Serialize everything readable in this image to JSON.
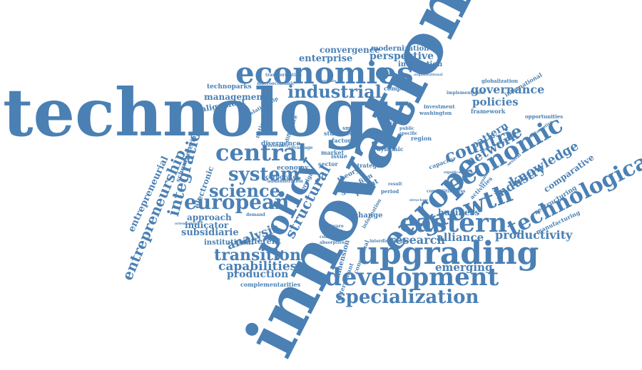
{
  "word_color": "#4a80b4",
  "words": [
    {
      "text": "technology",
      "weight": 1.0
    },
    {
      "text": "innovation",
      "weight": 1.0
    },
    {
      "text": "upgrading",
      "weight": 0.55
    },
    {
      "text": "economies",
      "weight": 0.45
    },
    {
      "text": "policy",
      "weight": 0.45
    },
    {
      "text": "europe",
      "weight": 0.45
    },
    {
      "text": "eastern",
      "weight": 0.4
    },
    {
      "text": "growth",
      "weight": 0.4
    },
    {
      "text": "economic",
      "weight": 0.4
    },
    {
      "text": "development",
      "weight": 0.4
    },
    {
      "text": "technological",
      "weight": 0.35
    },
    {
      "text": "central",
      "weight": 0.35
    },
    {
      "text": "industrial",
      "weight": 0.3
    },
    {
      "text": "european",
      "weight": 0.3
    },
    {
      "text": "system",
      "weight": 0.3
    },
    {
      "text": "science",
      "weight": 0.3
    },
    {
      "text": "specialization",
      "weight": 0.3
    },
    {
      "text": "countrie",
      "weight": 0.3
    },
    {
      "text": "integration",
      "weight": 0.25
    },
    {
      "text": "entrepreneurship",
      "weight": 0.25
    },
    {
      "text": "structural",
      "weight": 0.25
    },
    {
      "text": "knowledge",
      "weight": 0.25
    },
    {
      "text": "network",
      "weight": 0.25
    },
    {
      "text": "industry",
      "weight": 0.22
    },
    {
      "text": "transition",
      "weight": 0.22
    },
    {
      "text": "capabilities",
      "weight": 0.2
    },
    {
      "text": "production",
      "weight": 0.18
    },
    {
      "text": "research",
      "weight": 0.18
    },
    {
      "text": "alliance",
      "weight": 0.18
    },
    {
      "text": "productivity",
      "weight": 0.18
    },
    {
      "text": "governance",
      "weight": 0.18
    },
    {
      "text": "policies",
      "weight": 0.18
    },
    {
      "text": "perspective",
      "weight": 0.16
    },
    {
      "text": "enterprise",
      "weight": 0.16
    },
    {
      "text": "convergence",
      "weight": 0.14
    },
    {
      "text": "modernization",
      "weight": 0.14
    },
    {
      "text": "analysis",
      "weight": 0.18
    },
    {
      "text": "indicator",
      "weight": 0.16
    },
    {
      "text": "subsidiarie",
      "weight": 0.16
    },
    {
      "text": "approach",
      "weight": 0.14
    },
    {
      "text": "different",
      "weight": 0.14
    },
    {
      "text": "emerging",
      "weight": 0.16
    },
    {
      "text": "business",
      "weight": 0.14
    },
    {
      "text": "pattern",
      "weight": 0.18
    },
    {
      "text": "comparative",
      "weight": 0.14
    },
    {
      "text": "entrepreneurial",
      "weight": 0.14
    },
    {
      "text": "alignment",
      "weight": 0.12
    },
    {
      "text": "electronic",
      "weight": 0.12
    },
    {
      "text": "management",
      "weight": 0.11
    },
    {
      "text": "restructuring",
      "weight": 0.11
    },
    {
      "text": "manufacturing",
      "weight": 0.1
    },
    {
      "text": "interaction",
      "weight": 0.1
    },
    {
      "text": "global",
      "weight": 0.12
    },
    {
      "text": "change",
      "weight": 0.11
    },
    {
      "text": "dimension",
      "weight": 0.11
    },
    {
      "text": "determinant",
      "weight": 0.1
    },
    {
      "text": "conceptual",
      "weight": 0.1
    },
    {
      "text": "patent",
      "weight": 0.11
    },
    {
      "text": "theory",
      "weight": 0.11
    },
    {
      "text": "firm",
      "weight": 0.1
    },
    {
      "text": "complementarities",
      "weight": 0.09
    },
    {
      "text": "institutional",
      "weight": 0.1
    },
    {
      "text": "schumpeterian",
      "weight": 0.09
    },
    {
      "text": "technoparks",
      "weight": 0.09
    },
    {
      "text": "divergence",
      "weight": 0.09
    },
    {
      "text": "economy",
      "weight": 0.09
    },
    {
      "text": "corporate",
      "weight": 0.09
    },
    {
      "text": "market",
      "weight": 0.09
    },
    {
      "text": "foreign",
      "weight": 0.09
    },
    {
      "text": "income",
      "weight": 0.09
    },
    {
      "text": "studies",
      "weight": 0.09
    },
    {
      "text": "capacity",
      "weight": 0.09
    },
    {
      "text": "activities",
      "weight": 0.09
    },
    {
      "text": "opportunities",
      "weight": 0.08
    },
    {
      "text": "washington",
      "weight": 0.08
    },
    {
      "text": "framework",
      "weight": 0.08
    },
    {
      "text": "investment",
      "weight": 0.08
    },
    {
      "text": "globalization",
      "weight": 0.08
    },
    {
      "text": "international",
      "weight": 0.08
    },
    {
      "text": "implementation",
      "weight": 0.07
    },
    {
      "text": "composite",
      "weight": 0.08
    },
    {
      "text": "transformation",
      "weight": 0.07
    },
    {
      "text": "macroeconomic",
      "weight": 0.07
    },
    {
      "text": "relationship",
      "weight": 0.07
    },
    {
      "text": "national",
      "weight": 0.08
    },
    {
      "text": "difference",
      "weight": 0.07
    },
    {
      "text": "intensity",
      "weight": 0.07
    },
    {
      "text": "advantage",
      "weight": 0.07
    },
    {
      "text": "demand",
      "weight": 0.07
    },
    {
      "text": "orientation",
      "weight": 0.07
    },
    {
      "text": "interdisciplinary",
      "weight": 0.06
    },
    {
      "text": "software",
      "weight": 0.07
    },
    {
      "text": "scientific",
      "weight": 0.07
    },
    {
      "text": "computer",
      "weight": 0.07
    },
    {
      "text": "absorptive",
      "weight": 0.07
    },
    {
      "text": "information",
      "weight": 0.07
    },
    {
      "text": "dynamic",
      "weight": 0.07
    },
    {
      "text": "factor",
      "weight": 0.08
    },
    {
      "text": "region",
      "weight": 0.08
    },
    {
      "text": "strategic",
      "weight": 0.08
    },
    {
      "text": "issue",
      "weight": 0.08
    },
    {
      "text": "sector",
      "weight": 0.08
    },
    {
      "text": "smart",
      "weight": 0.08
    },
    {
      "text": "period",
      "weight": 0.07
    },
    {
      "text": "result",
      "weight": 0.07
    },
    {
      "text": "public",
      "weight": 0.06
    },
    {
      "text": "specific",
      "weight": 0.06
    },
    {
      "text": "socialist",
      "weight": 0.06
    },
    {
      "text": "middle",
      "weight": 0.06
    },
    {
      "text": "organizational",
      "weight": 0.06
    },
    {
      "text": "administration",
      "weight": 0.06
    },
    {
      "text": "several",
      "weight": 0.06
    },
    {
      "text": "automotive",
      "weight": 0.06
    },
    {
      "text": "significant",
      "weight": 0.06
    },
    {
      "text": "competitiveness",
      "weight": 0.06
    },
    {
      "text": "structure",
      "weight": 0.06
    },
    {
      "text": "country",
      "weight": 0.06
    },
    {
      "text": "government",
      "weight": 0.06
    }
  ]
}
